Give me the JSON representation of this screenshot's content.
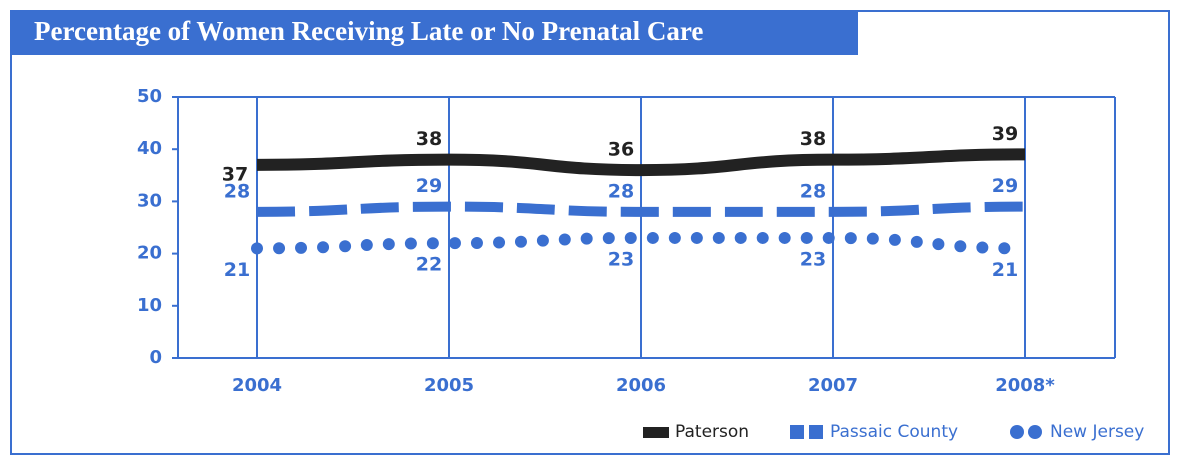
{
  "chart_data": {
    "type": "line",
    "title": "Percentage of Women Receiving Late or No Prenatal Care",
    "categories": [
      "2004",
      "2005",
      "2006",
      "2007",
      "2008*"
    ],
    "series": [
      {
        "name": "Paterson",
        "color": "#222222",
        "style": "solid",
        "values": [
          37,
          38,
          36,
          38,
          39
        ]
      },
      {
        "name": "Passaic County",
        "color": "#3a6fd0",
        "style": "dashed",
        "values": [
          28,
          29,
          28,
          28,
          29
        ]
      },
      {
        "name": "New Jersey",
        "color": "#3a6fd0",
        "style": "dotted",
        "values": [
          21,
          22,
          23,
          23,
          21
        ]
      }
    ],
    "ylim": [
      0,
      50
    ],
    "yticks": [
      0,
      10,
      20,
      30,
      40,
      50
    ],
    "grid": "x"
  }
}
